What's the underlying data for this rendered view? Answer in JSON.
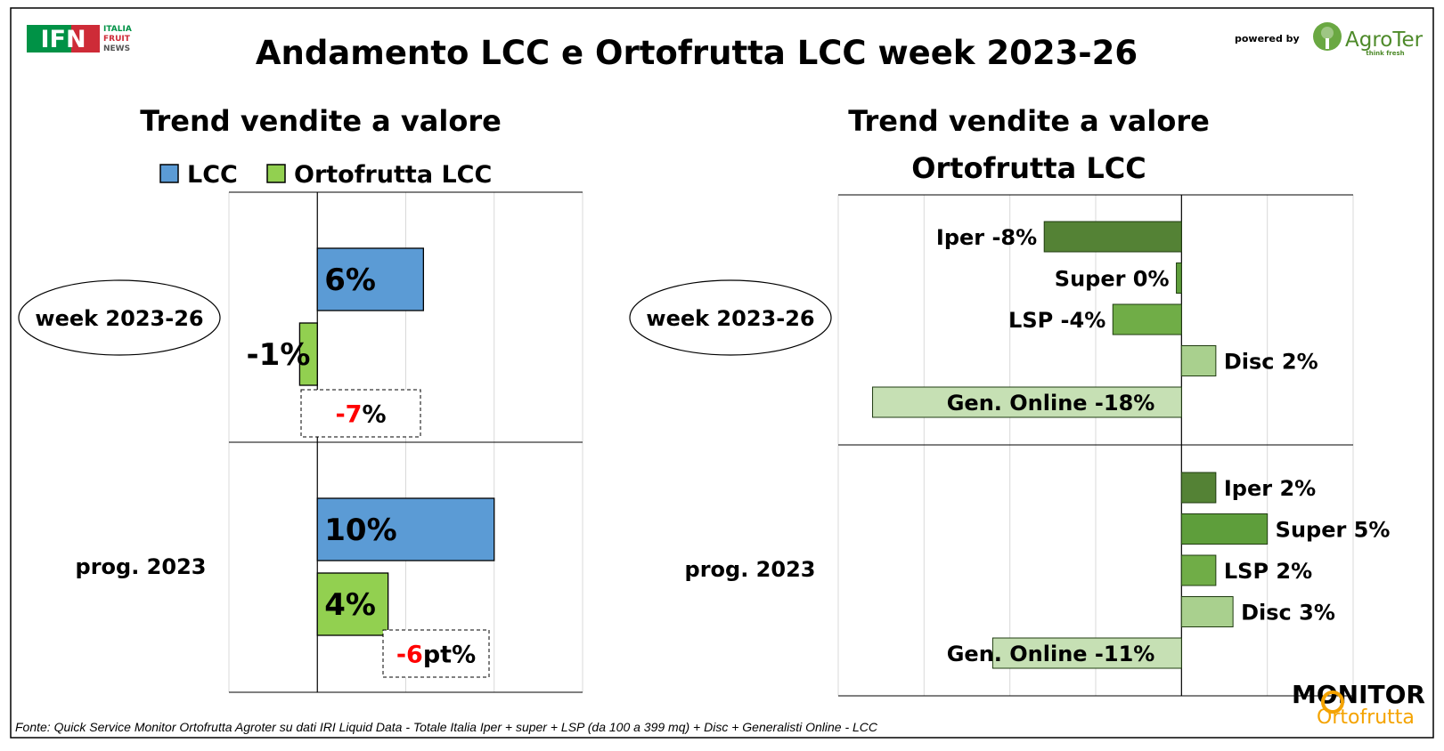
{
  "title": "Andamento LCC e Ortofrutta LCC week 2023-26",
  "header": {
    "logo_ifn": "IFN",
    "logo_ifn_sub": [
      "ITALIA",
      "FRUIT",
      "NEWS"
    ],
    "powered_by": "powered by",
    "agroter": "AgroTer",
    "agroter_tagline": "think fresh"
  },
  "footer": {
    "source": "Fonte: Quick Service Monitor Ortofrutta Agroter su dati IRI Liquid Data - Totale Italia Iper + super + LSP (da 100 a 399 mq) + Disc + Generalisti Online - LCC",
    "monitor_logo_top": "MONITOR",
    "monitor_logo_bottom": "Ortofrutta"
  },
  "colors": {
    "lcc": "#5b9bd5",
    "ortofrutta": "#92d050",
    "iper": "#548235",
    "super": "#5e9e3b",
    "lsp": "#70ad47",
    "disc": "#a9d08e",
    "online": "#c6e0b4",
    "delta_red": "#ff0000"
  },
  "chart_data": [
    {
      "type": "bar",
      "orientation": "horizontal",
      "title": "Trend vendite a valore",
      "categories": [
        "week 2023-26",
        "prog. 2023"
      ],
      "series": [
        {
          "name": "LCC",
          "values": [
            6,
            10
          ],
          "labels": [
            "6%",
            "10%"
          ]
        },
        {
          "name": "Ortofrutta LCC",
          "values": [
            -1,
            4
          ],
          "labels": [
            "-1%",
            "4%"
          ]
        }
      ],
      "annotations": [
        {
          "category": "week 2023-26",
          "value": "-7",
          "suffix": "%"
        },
        {
          "category": "prog. 2023",
          "value": "-6",
          "suffix": "pt%"
        }
      ],
      "xlim": [
        -5,
        15
      ],
      "legend": "top",
      "grid": true
    },
    {
      "type": "bar",
      "orientation": "horizontal",
      "title": [
        "Trend vendite a valore",
        "Ortofrutta LCC"
      ],
      "groups": [
        {
          "name": "week 2023-26",
          "bars": [
            {
              "label": "Iper -8%",
              "value": -8
            },
            {
              "label": "Super 0%",
              "value": -0.3
            },
            {
              "label": "LSP -4%",
              "value": -4
            },
            {
              "label": "Disc 2%",
              "value": 2
            },
            {
              "label": "Gen. Online -18%",
              "value": -18
            }
          ]
        },
        {
          "name": "prog. 2023",
          "bars": [
            {
              "label": "Iper 2%",
              "value": 2
            },
            {
              "label": "Super 5%",
              "value": 5
            },
            {
              "label": "LSP 2%",
              "value": 2
            },
            {
              "label": "Disc 3%",
              "value": 3
            },
            {
              "label": "Gen. Online -11%",
              "value": -11
            }
          ]
        }
      ],
      "xlim": [
        -20,
        10
      ],
      "grid": true
    }
  ]
}
